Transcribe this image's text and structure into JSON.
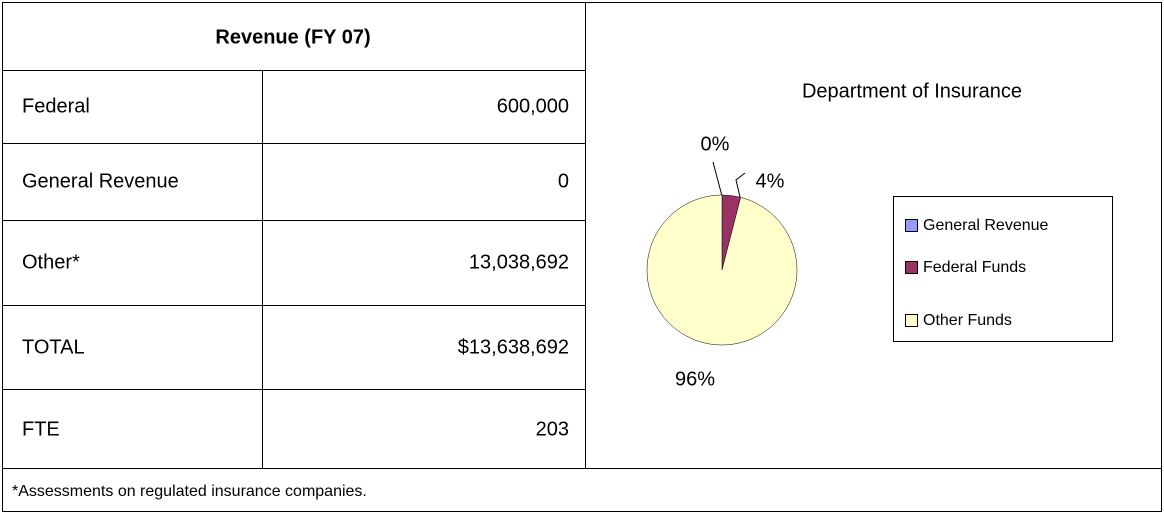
{
  "table": {
    "header": "Revenue (FY 07)",
    "rows": [
      [
        "Federal",
        "600,000"
      ],
      [
        "General Revenue",
        "0"
      ],
      [
        "Other*",
        "13,038,692"
      ],
      [
        "TOTAL",
        "$13,638,692"
      ],
      [
        "FTE",
        "203"
      ]
    ],
    "footnote": "*Assessments on regulated insurance companies."
  },
  "chart_data": {
    "type": "pie",
    "title": "Department of Insurance",
    "categories": [
      "General Revenue",
      "Federal Funds",
      "Other Funds"
    ],
    "values": [
      0,
      4,
      96
    ],
    "value_labels": [
      "0%",
      "4%",
      "96%"
    ],
    "colors": [
      "#9999ff",
      "#993366",
      "#ffffcc"
    ],
    "legend": "right"
  }
}
